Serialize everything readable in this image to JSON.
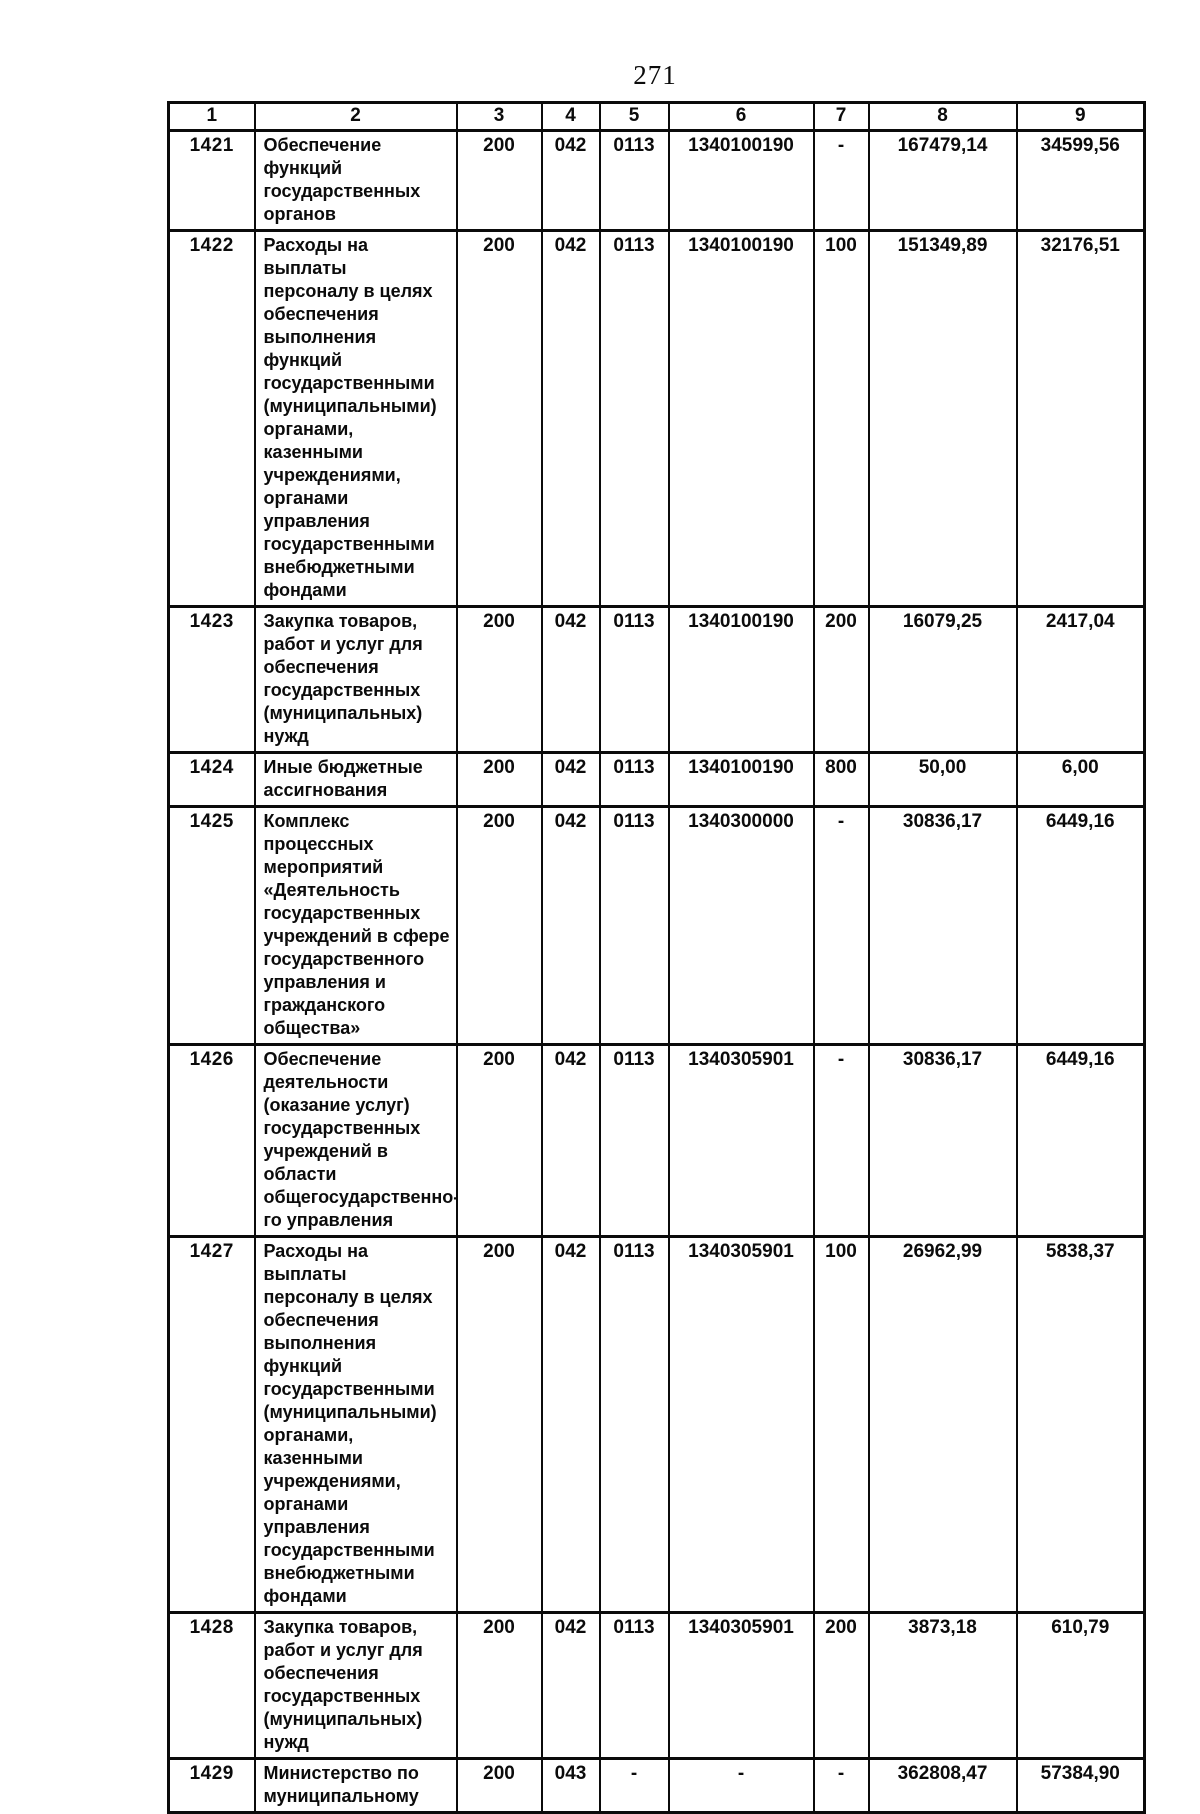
{
  "page": {
    "number": "271"
  },
  "table": {
    "column_headers": [
      "1",
      "2",
      "3",
      "4",
      "5",
      "6",
      "7",
      "8",
      "9"
    ],
    "rows": [
      {
        "cells": [
          "1421",
          "Обеспечение\nфункций\nгосударственных\nорганов",
          "200",
          "042",
          "0113",
          "1340100190",
          "-",
          "167479,14",
          "34599,56"
        ]
      },
      {
        "cells": [
          "1422",
          "Расходы на выплаты\nперсоналу в целях\nобеспечения\nвыполнения функций\nгосударственными\n(муниципальными)\nорганами, казенными\nучреждениями,\nорганами управления\nгосударственными\nвнебюджетными\nфондами",
          "200",
          "042",
          "0113",
          "1340100190",
          "100",
          "151349,89",
          "32176,51"
        ]
      },
      {
        "cells": [
          "1423",
          "Закупка товаров,\nработ и услуг для\nобеспечения\nгосударственных\n(муниципальных)\nнужд",
          "200",
          "042",
          "0113",
          "1340100190",
          "200",
          "16079,25",
          "2417,04"
        ]
      },
      {
        "cells": [
          "1424",
          "Иные бюджетные\nассигнования",
          "200",
          "042",
          "0113",
          "1340100190",
          "800",
          "50,00",
          "6,00"
        ]
      },
      {
        "cells": [
          "1425",
          "Комплекс\nпроцессных\nмероприятий\n«Деятельность\nгосударственных\nучреждений в сфере\nгосударственного\nуправления и\nгражданского\nобщества»",
          "200",
          "042",
          "0113",
          "1340300000",
          "-",
          "30836,17",
          "6449,16"
        ]
      },
      {
        "cells": [
          "1426",
          "Обеспечение\nдеятельности\n(оказание услуг)\nгосударственных\nучреждений в\nобласти\nобщегосударственно-\nго управления",
          "200",
          "042",
          "0113",
          "1340305901",
          "-",
          "30836,17",
          "6449,16"
        ]
      },
      {
        "cells": [
          "1427",
          "Расходы на выплаты\nперсоналу в целях\nобеспечения\nвыполнения функций\nгосударственными\n(муниципальными)\nорганами, казенными\nучреждениями,\nорганами управления\nгосударственными\nвнебюджетными\nфондами",
          "200",
          "042",
          "0113",
          "1340305901",
          "100",
          "26962,99",
          "5838,37"
        ]
      },
      {
        "cells": [
          "1428",
          "Закупка товаров,\nработ и услуг для\nобеспечения\nгосударственных\n(муниципальных)\nнужд",
          "200",
          "042",
          "0113",
          "1340305901",
          "200",
          "3873,18",
          "610,79"
        ]
      },
      {
        "cells": [
          "1429",
          "Министерство по\nмуниципальному",
          "200",
          "043",
          "-",
          "-",
          "-",
          "362808,47",
          "57384,90"
        ]
      }
    ]
  }
}
